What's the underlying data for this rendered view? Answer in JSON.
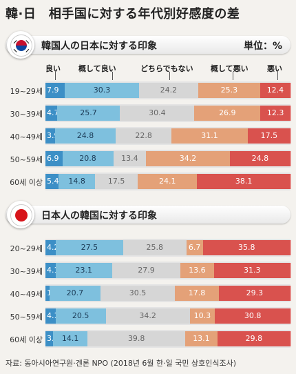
{
  "title": "韓·日　相手国に対する年代別好感度の差",
  "unit_label": "単位：%",
  "legend": [
    "良い",
    "概して良い",
    "どちらでもない",
    "概して悪い",
    "悪い"
  ],
  "colors": {
    "good": "#3c8fc6",
    "somewhat_good": "#7ec0de",
    "neutral": "#d6d6d6",
    "somewhat_bad": "#e4a178",
    "bad": "#d9524e"
  },
  "source": "자료: 동아시아연구원·겐론 NPO (2018년 6월 한·일 국민 상호인식조사)",
  "chart_data": [
    {
      "type": "bar",
      "title": "韓国人の日本に対する印象",
      "categories": [
        "19~29세",
        "30~39세",
        "40~49세",
        "50~59세",
        "60세 이상"
      ],
      "series": [
        {
          "name": "良い",
          "values": [
            7.9,
            4.7,
            3.9,
            6.9,
            5.4
          ]
        },
        {
          "name": "概して良い",
          "values": [
            30.3,
            25.7,
            24.8,
            20.8,
            14.8
          ]
        },
        {
          "name": "どちらでもない",
          "values": [
            24.2,
            30.4,
            22.8,
            13.4,
            17.5
          ]
        },
        {
          "name": "概して悪い",
          "values": [
            25.3,
            26.9,
            31.1,
            34.2,
            24.1
          ]
        },
        {
          "name": "悪い",
          "values": [
            12.4,
            12.3,
            17.5,
            24.8,
            38.1
          ]
        }
      ]
    },
    {
      "type": "bar",
      "title": "日本人の韓国に対する印象",
      "categories": [
        "20~29세",
        "30~39세",
        "40~49세",
        "50~59세",
        "60세 이상"
      ],
      "series": [
        {
          "name": "良い",
          "values": [
            4.2,
            4.1,
            1.7,
            4.1,
            3.1
          ]
        },
        {
          "name": "概して良い",
          "values": [
            27.5,
            23.1,
            20.7,
            20.5,
            14.1
          ]
        },
        {
          "name": "どちらでもない",
          "values": [
            25.8,
            27.9,
            30.5,
            34.2,
            39.8
          ]
        },
        {
          "name": "概して悪い",
          "values": [
            6.7,
            13.6,
            17.8,
            10.3,
            13.1
          ]
        },
        {
          "name": "悪い",
          "values": [
            35.8,
            31.3,
            29.3,
            30.8,
            29.8
          ]
        }
      ]
    }
  ]
}
